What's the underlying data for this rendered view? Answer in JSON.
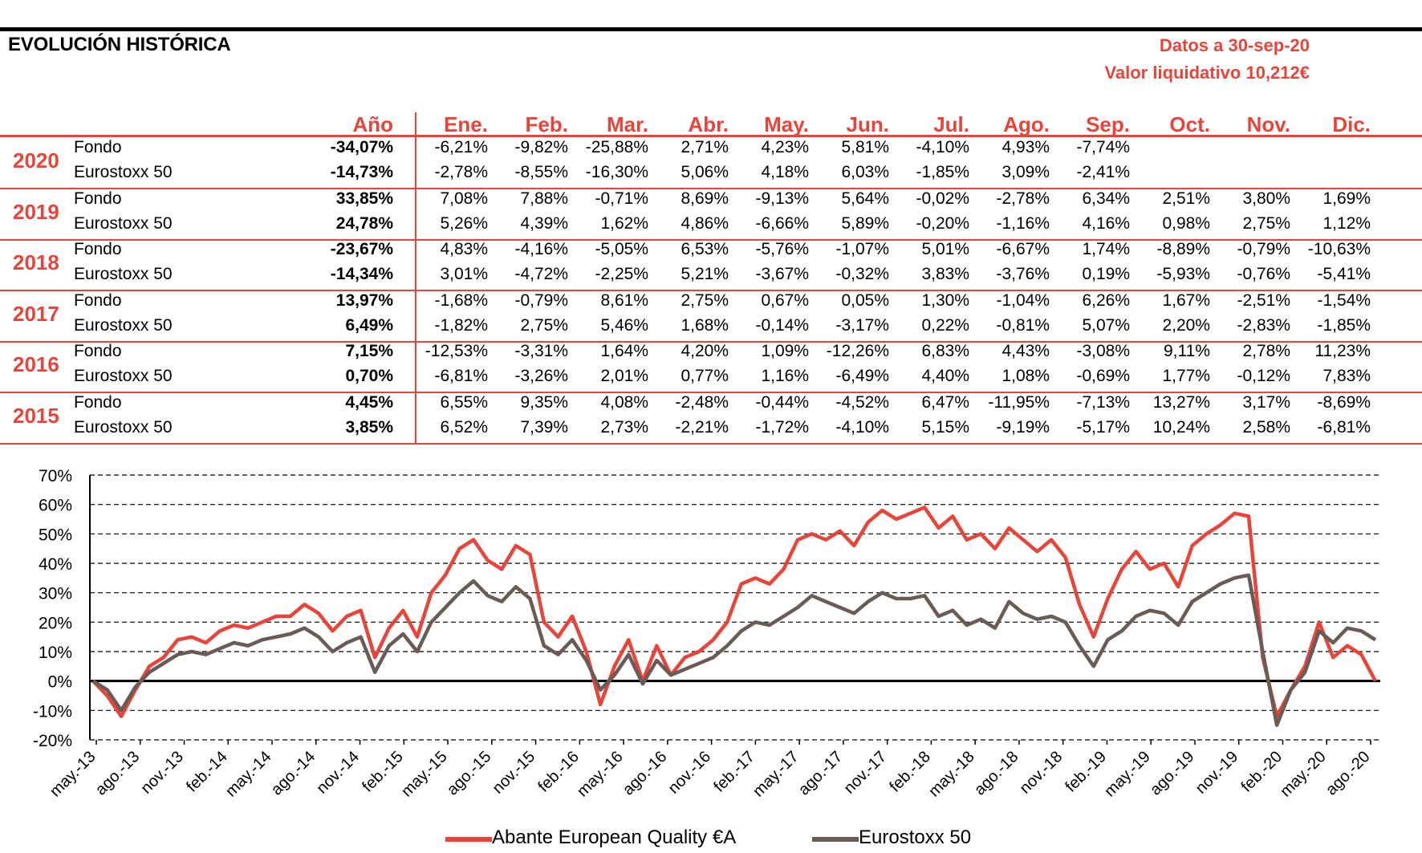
{
  "header": {
    "title": "EVOLUCIÓN HISTÓRICA",
    "date_label": "Datos a 30-sep-20",
    "nav_label": "Valor liquidativo 10,212€"
  },
  "table": {
    "columns": [
      "Año",
      "Ene.",
      "Feb.",
      "Mar.",
      "Abr.",
      "May.",
      "Jun.",
      "Jul.",
      "Ago.",
      "Sep.",
      "Oct.",
      "Nov.",
      "Dic."
    ],
    "rows": [
      {
        "year": "2020",
        "fund_label": "Fondo",
        "index_label": "Eurostoxx 50",
        "fund": [
          "-34,07%",
          "-6,21%",
          "-9,82%",
          "-25,88%",
          "2,71%",
          "4,23%",
          "5,81%",
          "-4,10%",
          "4,93%",
          "-7,74%",
          "",
          "",
          ""
        ],
        "index": [
          "-14,73%",
          "-2,78%",
          "-8,55%",
          "-16,30%",
          "5,06%",
          "4,18%",
          "6,03%",
          "-1,85%",
          "3,09%",
          "-2,41%",
          "",
          "",
          ""
        ]
      },
      {
        "year": "2019",
        "fund_label": "Fondo",
        "index_label": "Eurostoxx 50",
        "fund": [
          "33,85%",
          "7,08%",
          "7,88%",
          "-0,71%",
          "8,69%",
          "-9,13%",
          "5,64%",
          "-0,02%",
          "-2,78%",
          "6,34%",
          "2,51%",
          "3,80%",
          "1,69%"
        ],
        "index": [
          "24,78%",
          "5,26%",
          "4,39%",
          "1,62%",
          "4,86%",
          "-6,66%",
          "5,89%",
          "-0,20%",
          "-1,16%",
          "4,16%",
          "0,98%",
          "2,75%",
          "1,12%"
        ]
      },
      {
        "year": "2018",
        "fund_label": "Fondo",
        "index_label": "Eurostoxx 50",
        "fund": [
          "-23,67%",
          "4,83%",
          "-4,16%",
          "-5,05%",
          "6,53%",
          "-5,76%",
          "-1,07%",
          "5,01%",
          "-6,67%",
          "1,74%",
          "-8,89%",
          "-0,79%",
          "-10,63%"
        ],
        "index": [
          "-14,34%",
          "3,01%",
          "-4,72%",
          "-2,25%",
          "5,21%",
          "-3,67%",
          "-0,32%",
          "3,83%",
          "-3,76%",
          "0,19%",
          "-5,93%",
          "-0,76%",
          "-5,41%"
        ]
      },
      {
        "year": "2017",
        "fund_label": "Fondo",
        "index_label": "Eurostoxx 50",
        "fund": [
          "13,97%",
          "-1,68%",
          "-0,79%",
          "8,61%",
          "2,75%",
          "0,67%",
          "0,05%",
          "1,30%",
          "-1,04%",
          "6,26%",
          "1,67%",
          "-2,51%",
          "-1,54%"
        ],
        "index": [
          "6,49%",
          "-1,82%",
          "2,75%",
          "5,46%",
          "1,68%",
          "-0,14%",
          "-3,17%",
          "0,22%",
          "-0,81%",
          "5,07%",
          "2,20%",
          "-2,83%",
          "-1,85%"
        ]
      },
      {
        "year": "2016",
        "fund_label": "Fondo",
        "index_label": "Eurostoxx 50",
        "fund": [
          "7,15%",
          "-12,53%",
          "-3,31%",
          "1,64%",
          "4,20%",
          "1,09%",
          "-12,26%",
          "6,83%",
          "4,43%",
          "-3,08%",
          "9,11%",
          "2,78%",
          "11,23%"
        ],
        "index": [
          "0,70%",
          "-6,81%",
          "-3,26%",
          "2,01%",
          "0,77%",
          "1,16%",
          "-6,49%",
          "4,40%",
          "1,08%",
          "-0,69%",
          "1,77%",
          "-0,12%",
          "7,83%"
        ]
      },
      {
        "year": "2015",
        "fund_label": "Fondo",
        "index_label": "Eurostoxx 50",
        "fund": [
          "4,45%",
          "6,55%",
          "9,35%",
          "4,08%",
          "-2,48%",
          "-0,44%",
          "-4,52%",
          "6,47%",
          "-11,95%",
          "-7,13%",
          "13,27%",
          "3,17%",
          "-8,69%"
        ],
        "index": [
          "3,85%",
          "6,52%",
          "7,39%",
          "2,73%",
          "-2,21%",
          "-1,72%",
          "-4,10%",
          "5,15%",
          "-9,19%",
          "-5,17%",
          "10,24%",
          "2,58%",
          "-6,81%"
        ]
      }
    ]
  },
  "colors": {
    "accent": "#e8443a",
    "fund_line": "#e8443a",
    "index_line": "#6b5b57"
  },
  "chart_data": {
    "type": "line",
    "ylim": [
      -20,
      70
    ],
    "y_ticks": [
      "70%",
      "60%",
      "50%",
      "40%",
      "30%",
      "20%",
      "10%",
      "0%",
      "-10%",
      "-20%"
    ],
    "x_ticks": [
      "may.-13",
      "ago.-13",
      "nov.-13",
      "feb.-14",
      "may.-14",
      "ago.-14",
      "nov.-14",
      "feb.-15",
      "may.-15",
      "ago.-15",
      "nov.-15",
      "feb.-16",
      "may.-16",
      "ago.-16",
      "nov.-16",
      "feb.-17",
      "may.-17",
      "ago.-17",
      "nov.-17",
      "feb.-18",
      "may.-18",
      "ago.-18",
      "nov.-18",
      "feb.-19",
      "may.-19",
      "ago.-19",
      "nov.-19",
      "feb.-20",
      "may.-20",
      "ago.-20"
    ],
    "grid": true,
    "legend_position": "bottom",
    "series": [
      {
        "name": "Abante European Quality €A",
        "values": [
          0,
          -5,
          -12,
          -3,
          5,
          8,
          14,
          15,
          13,
          17,
          19,
          18,
          20,
          22,
          22,
          26,
          23,
          17,
          22,
          24,
          8,
          18,
          24,
          15,
          30,
          36,
          45,
          48,
          41,
          38,
          46,
          43,
          20,
          15,
          22,
          10,
          -8,
          5,
          14,
          0,
          12,
          2,
          8,
          10,
          14,
          20,
          33,
          35,
          33,
          38,
          48,
          50,
          48,
          51,
          46,
          54,
          58,
          55,
          57,
          59,
          52,
          56,
          48,
          50,
          45,
          52,
          48,
          44,
          48,
          42,
          26,
          15,
          28,
          38,
          44,
          38,
          40,
          32,
          46,
          50,
          53,
          57,
          56,
          8,
          -12,
          -3,
          5,
          20,
          8,
          12,
          9,
          0
        ]
      },
      {
        "name": "Eurostoxx 50",
        "values": [
          0,
          -3,
          -10,
          -2,
          3,
          6,
          9,
          10,
          9,
          11,
          13,
          12,
          14,
          15,
          16,
          18,
          15,
          10,
          13,
          15,
          3,
          12,
          16,
          10,
          20,
          25,
          30,
          34,
          29,
          27,
          32,
          28,
          12,
          9,
          14,
          7,
          -3,
          2,
          9,
          -1,
          7,
          2,
          4,
          6,
          8,
          12,
          17,
          20,
          19,
          22,
          25,
          29,
          27,
          25,
          23,
          27,
          30,
          28,
          28,
          29,
          22,
          24,
          19,
          21,
          18,
          27,
          23,
          21,
          22,
          20,
          12,
          5,
          14,
          17,
          22,
          24,
          23,
          19,
          27,
          30,
          33,
          35,
          36,
          10,
          -15,
          -3,
          3,
          17,
          13,
          18,
          17,
          14
        ]
      }
    ]
  }
}
